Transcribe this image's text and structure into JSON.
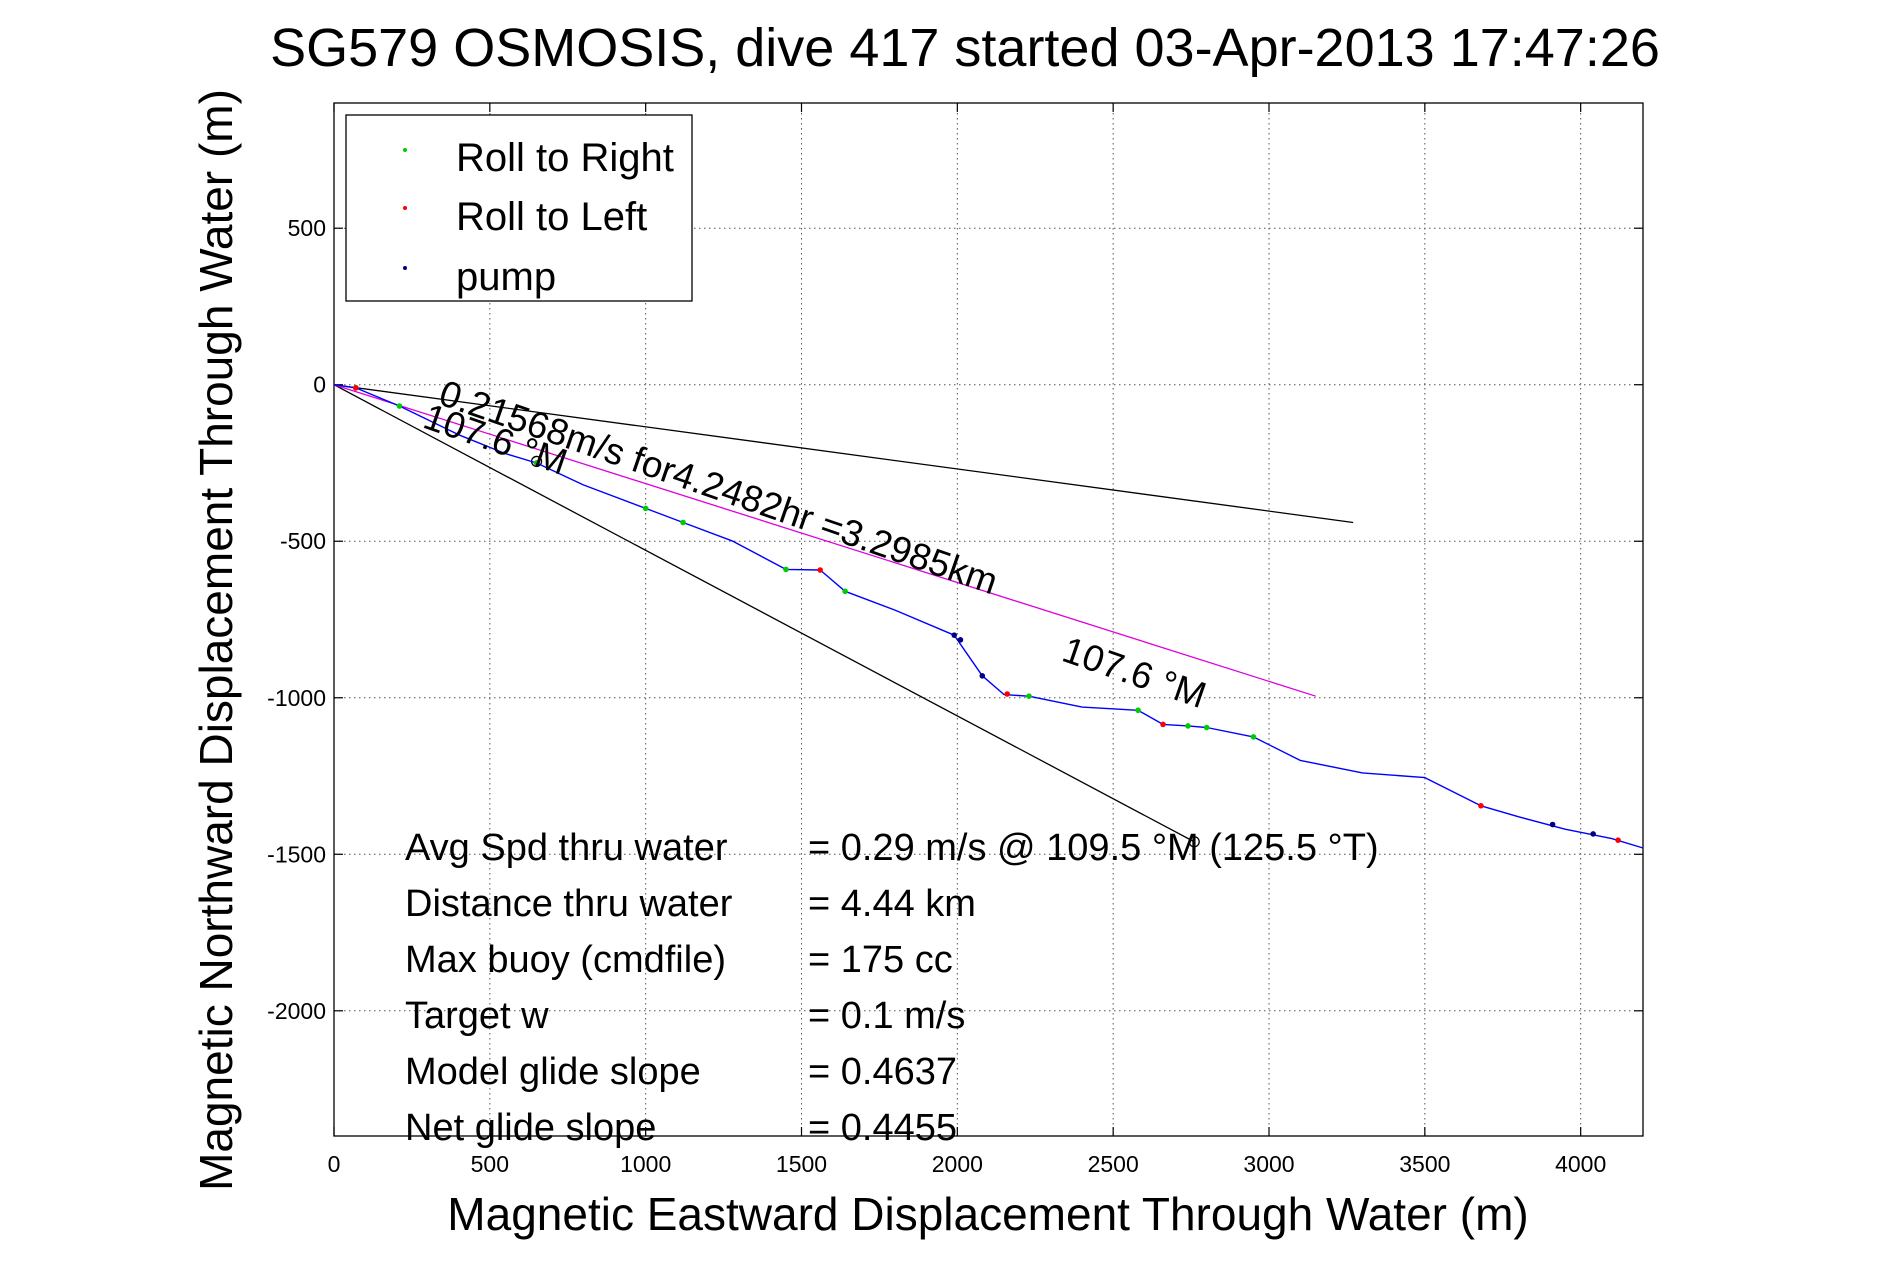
{
  "chart_data": {
    "type": "line",
    "title": "SG579 OSMOSIS, dive 417 started 03-Apr-2013 17:47:26",
    "xlabel": "Magnetic Eastward Displacement Through Water (m)",
    "ylabel": "Magnetic Northward Displacement Through Water (m)",
    "xlim": [
      0,
      4200
    ],
    "ylim": [
      -2400,
      900
    ],
    "xticks": [
      0,
      500,
      1000,
      1500,
      2000,
      2500,
      3000,
      3500,
      4000
    ],
    "yticks": [
      -2000,
      -1500,
      -1000,
      -500,
      0,
      500
    ],
    "grid": true,
    "legend_position": "top-left",
    "legend": [
      {
        "label": "Roll to Right",
        "color": "#00cc00"
      },
      {
        "label": "Roll to Left",
        "color": "#ff0000"
      },
      {
        "label": "pump",
        "color": "#000080"
      }
    ],
    "track": {
      "name": "track",
      "color": "#0000ff",
      "x": [
        0,
        70,
        210,
        400,
        550,
        650,
        800,
        1000,
        1120,
        1280,
        1450,
        1560,
        1640,
        1800,
        1990,
        2080,
        2150,
        2230,
        2400,
        2580,
        2660,
        2740,
        2800,
        2950,
        3100,
        3300,
        3500,
        3680,
        3800,
        3950,
        4100,
        4200
      ],
      "y": [
        0,
        -10,
        -68,
        -160,
        -220,
        -250,
        -320,
        -395,
        -440,
        -500,
        -590,
        -592,
        -660,
        -720,
        -800,
        -930,
        -990,
        -995,
        -1030,
        -1040,
        -1085,
        -1090,
        -1095,
        -1125,
        -1200,
        -1240,
        -1255,
        -1345,
        -1380,
        -1420,
        -1450,
        -1480
      ]
    },
    "roll_right_points": {
      "x": [
        70,
        210,
        650,
        1000,
        1120,
        1450,
        1640,
        2230,
        2580,
        2740,
        2800,
        2950
      ],
      "y": [
        -10,
        -68,
        -250,
        -395,
        -440,
        -590,
        -660,
        -995,
        -1040,
        -1090,
        -1095,
        -1125
      ]
    },
    "roll_left_points": {
      "x": [
        70,
        1560,
        2160,
        2660,
        3680,
        4120
      ],
      "y": [
        -10,
        -592,
        -988,
        -1085,
        -1345,
        -1455
      ]
    },
    "pump_points": {
      "x": [
        1990,
        2010,
        2080,
        3910,
        4040
      ],
      "y": [
        -800,
        -815,
        -930,
        -1405,
        -1435
      ]
    },
    "reference_lines": [
      {
        "color": "#000000",
        "x": [
          0,
          3270
        ],
        "y": [
          0,
          -440
        ]
      },
      {
        "color": "#000000",
        "x": [
          0,
          2760
        ],
        "y": [
          0,
          -1460
        ]
      },
      {
        "color": "#dd00dd",
        "x": [
          0,
          3150
        ],
        "y": [
          0,
          -995
        ]
      }
    ],
    "reference_markers": {
      "x": [
        650,
        2760
      ],
      "y": [
        -245,
        -1460
      ]
    },
    "annotations": [
      {
        "text": "0.21568m/s for4.2482hr =3.2985km",
        "x": 330,
        "y": -60,
        "angle": 19
      },
      {
        "text": "107.6 °M",
        "x": 280,
        "y": -135,
        "angle": 19
      },
      {
        "text": "107.6 °M",
        "x": 2330,
        "y": -880,
        "angle": 19
      }
    ],
    "stats": [
      {
        "label": "Avg Spd thru water",
        "value": "=  0.29 m/s @ 109.5 °M (125.5 °T)"
      },
      {
        "label": "Distance thru water",
        "value": "=  4.44 km"
      },
      {
        "label": "Max buoy (cmdfile)",
        "value": "= 175 cc"
      },
      {
        "label": "Target w",
        "value": "= 0.1 m/s"
      },
      {
        "label": "Model glide slope",
        "value": "= 0.4637"
      },
      {
        "label": "Net glide slope",
        "value": "= 0.4455"
      }
    ]
  }
}
